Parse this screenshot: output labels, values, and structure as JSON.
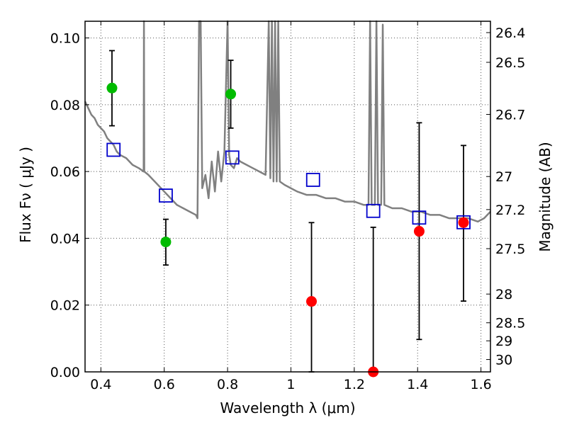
{
  "chart_data": {
    "type": "scatter",
    "xlabel": "Wavelength  λ (μm)",
    "ylabel": "Flux  Fν  ( μJy )",
    "ylabel_right": "Magnitude (AB)",
    "xlim": [
      0.35,
      1.63
    ],
    "ylim": [
      0.0,
      0.105
    ],
    "grid": true,
    "x_ticks": [
      0.4,
      0.6,
      0.8,
      1.0,
      1.2,
      1.4,
      1.6
    ],
    "x_tick_labels": [
      "0.4",
      "0.6",
      "0.8",
      "1",
      "1.2",
      "1.4",
      "1.6"
    ],
    "y_ticks": [
      0.0,
      0.02,
      0.04,
      0.06,
      0.08,
      0.1
    ],
    "y_tick_labels": [
      "0.00",
      "0.02",
      "0.04",
      "0.06",
      "0.08",
      "0.10"
    ],
    "right_axis": {
      "ticks": [
        {
          "label": "26.4",
          "flux": 0.1016
        },
        {
          "label": "26.5",
          "flux": 0.0927
        },
        {
          "label": "26.7",
          "flux": 0.0771
        },
        {
          "label": "27",
          "flux": 0.0585
        },
        {
          "label": "27.2",
          "flux": 0.0486
        },
        {
          "label": "27.5",
          "flux": 0.0369
        },
        {
          "label": "28",
          "flux": 0.0233
        },
        {
          "label": "28.5",
          "flux": 0.0147
        },
        {
          "label": "29",
          "flux": 0.0093
        },
        {
          "label": "30",
          "flux": 0.0037
        }
      ]
    },
    "colors": {
      "model": "#808080",
      "model_points": "#0000cc",
      "detections": "#00bb00",
      "nondetections": "#ff0000",
      "errorbars": "#000000",
      "grid": "#555555"
    },
    "series": [
      {
        "type": "line",
        "points": [
          [
            0.35,
            0.081
          ],
          [
            0.36,
            0.079
          ],
          [
            0.37,
            0.077
          ],
          [
            0.38,
            0.076
          ],
          [
            0.39,
            0.074
          ],
          [
            0.4,
            0.073
          ],
          [
            0.41,
            0.072
          ],
          [
            0.42,
            0.07
          ],
          [
            0.43,
            0.069
          ],
          [
            0.44,
            0.068
          ],
          [
            0.45,
            0.066
          ],
          [
            0.46,
            0.065
          ],
          [
            0.48,
            0.064
          ],
          [
            0.5,
            0.062
          ],
          [
            0.52,
            0.061
          ],
          [
            0.535,
            0.06
          ],
          [
            0.536,
            0.105
          ],
          [
            0.537,
            0.06
          ],
          [
            0.55,
            0.059
          ],
          [
            0.57,
            0.057
          ],
          [
            0.6,
            0.054
          ],
          [
            0.62,
            0.052
          ],
          [
            0.64,
            0.05
          ],
          [
            0.66,
            0.049
          ],
          [
            0.68,
            0.048
          ],
          [
            0.7,
            0.047
          ],
          [
            0.705,
            0.046
          ],
          [
            0.71,
            0.105
          ],
          [
            0.715,
            0.105
          ],
          [
            0.72,
            0.055
          ],
          [
            0.73,
            0.059
          ],
          [
            0.74,
            0.052
          ],
          [
            0.75,
            0.063
          ],
          [
            0.76,
            0.054
          ],
          [
            0.77,
            0.066
          ],
          [
            0.78,
            0.057
          ],
          [
            0.79,
            0.066
          ],
          [
            0.8,
            0.105
          ],
          [
            0.805,
            0.065
          ],
          [
            0.81,
            0.062
          ],
          [
            0.82,
            0.061
          ],
          [
            0.83,
            0.064
          ],
          [
            0.84,
            0.063
          ],
          [
            0.86,
            0.062
          ],
          [
            0.88,
            0.061
          ],
          [
            0.9,
            0.06
          ],
          [
            0.92,
            0.059
          ],
          [
            0.93,
            0.105
          ],
          [
            0.935,
            0.058
          ],
          [
            0.94,
            0.105
          ],
          [
            0.945,
            0.057
          ],
          [
            0.95,
            0.105
          ],
          [
            0.955,
            0.057
          ],
          [
            0.96,
            0.105
          ],
          [
            0.965,
            0.057
          ],
          [
            0.98,
            0.056
          ],
          [
            1.0,
            0.055
          ],
          [
            1.02,
            0.054
          ],
          [
            1.05,
            0.053
          ],
          [
            1.08,
            0.053
          ],
          [
            1.11,
            0.052
          ],
          [
            1.14,
            0.052
          ],
          [
            1.17,
            0.051
          ],
          [
            1.2,
            0.051
          ],
          [
            1.23,
            0.05
          ],
          [
            1.245,
            0.05
          ],
          [
            1.25,
            0.105
          ],
          [
            1.255,
            0.05
          ],
          [
            1.265,
            0.05
          ],
          [
            1.27,
            0.105
          ],
          [
            1.275,
            0.05
          ],
          [
            1.285,
            0.05
          ],
          [
            1.29,
            0.104
          ],
          [
            1.295,
            0.05
          ],
          [
            1.32,
            0.049
          ],
          [
            1.35,
            0.049
          ],
          [
            1.38,
            0.048
          ],
          [
            1.41,
            0.048
          ],
          [
            1.44,
            0.047
          ],
          [
            1.47,
            0.047
          ],
          [
            1.5,
            0.046
          ],
          [
            1.53,
            0.046
          ],
          [
            1.56,
            0.046
          ],
          [
            1.59,
            0.045
          ],
          [
            1.61,
            0.046
          ],
          [
            1.63,
            0.048
          ]
        ]
      },
      {
        "type": "scatter",
        "marker": "square",
        "points": [
          [
            0.44,
            0.0665
          ],
          [
            0.605,
            0.0528
          ],
          [
            0.815,
            0.0642
          ],
          [
            1.07,
            0.0575
          ],
          [
            1.26,
            0.0482
          ],
          [
            1.405,
            0.0462
          ],
          [
            1.545,
            0.0448
          ]
        ]
      },
      {
        "type": "scatter",
        "marker": "circle",
        "points": [
          [
            0.435,
            0.085,
            0.0737,
            0.0962
          ],
          [
            0.605,
            0.0389,
            0.032,
            0.0457
          ],
          [
            0.81,
            0.0832,
            0.073,
            0.0933
          ]
        ]
      },
      {
        "type": "scatter",
        "marker": "circle",
        "points": [
          [
            1.065,
            0.0211,
            0.0,
            0.0447
          ],
          [
            1.26,
            0.0,
            0.0,
            0.0433
          ],
          [
            1.405,
            0.0421,
            0.0097,
            0.0746
          ],
          [
            1.545,
            0.0447,
            0.0212,
            0.0678
          ]
        ]
      }
    ]
  }
}
